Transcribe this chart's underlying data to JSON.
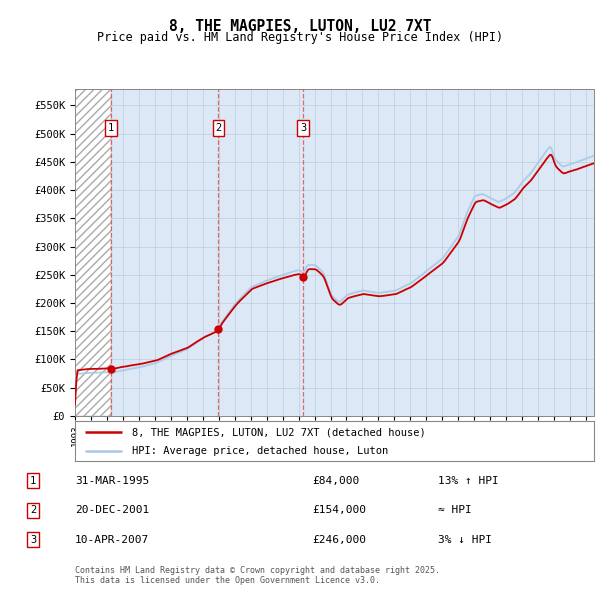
{
  "title": "8, THE MAGPIES, LUTON, LU2 7XT",
  "subtitle": "Price paid vs. HM Land Registry's House Price Index (HPI)",
  "yticks": [
    0,
    50000,
    100000,
    150000,
    200000,
    250000,
    300000,
    350000,
    400000,
    450000,
    500000,
    550000
  ],
  "ylim": [
    0,
    580000
  ],
  "xlim_start": 1993.0,
  "xlim_end": 2025.5,
  "transactions": [
    {
      "num": 1,
      "date_str": "31-MAR-1995",
      "price": 84000,
      "year": 1995.25,
      "hpi_rel": "13% ↑ HPI"
    },
    {
      "num": 2,
      "date_str": "20-DEC-2001",
      "price": 154000,
      "year": 2001.97,
      "hpi_rel": "≈ HPI"
    },
    {
      "num": 3,
      "date_str": "10-APR-2007",
      "price": 246000,
      "year": 2007.28,
      "hpi_rel": "3% ↓ HPI"
    }
  ],
  "legend_line1": "8, THE MAGPIES, LUTON, LU2 7XT (detached house)",
  "legend_line2": "HPI: Average price, detached house, Luton",
  "footer": "Contains HM Land Registry data © Crown copyright and database right 2025.\nThis data is licensed under the Open Government Licence v3.0.",
  "hpi_color": "#a8c8e8",
  "price_color": "#cc0000",
  "bg_color": "#ffffff",
  "plot_bg": "#dce8f5"
}
